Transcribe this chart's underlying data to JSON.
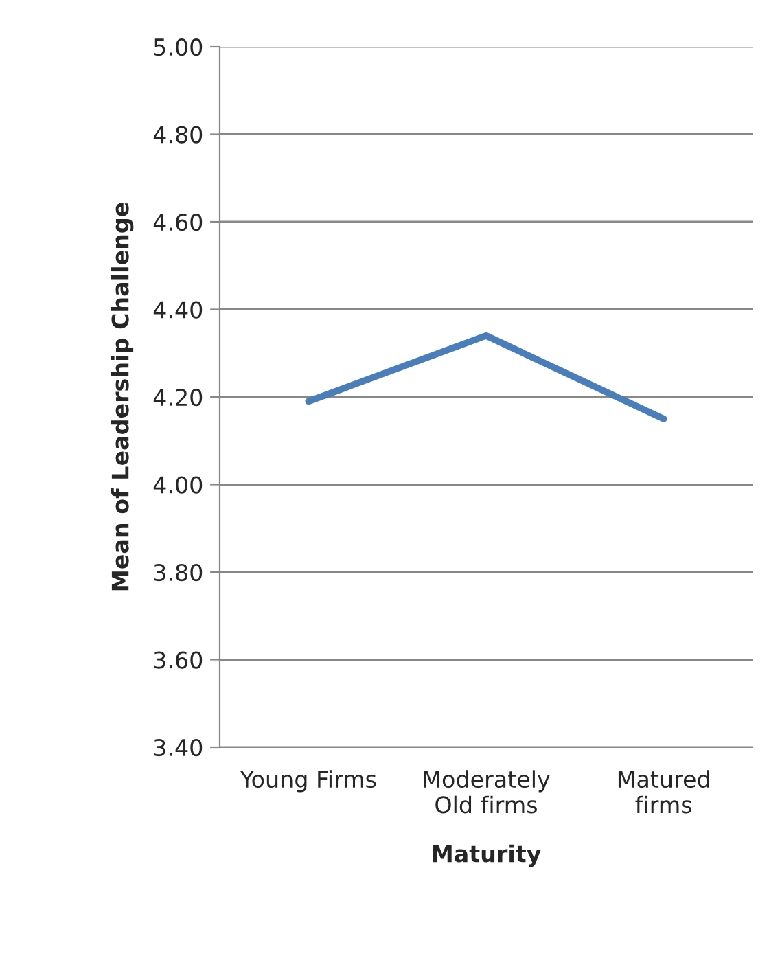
{
  "chart_data": {
    "type": "line",
    "xlabel": "Maturity",
    "ylabel": "Mean of Leadership Challenge",
    "categories": [
      "Young Firms",
      "Moderately\nOld firms",
      "Matured\nfirms"
    ],
    "series": [
      {
        "color": "#4a7ebb",
        "values": [
          4.19,
          4.34,
          4.15
        ]
      }
    ],
    "ylim": [
      3.4,
      5.0
    ],
    "yticks": [
      {
        "value": 3.4,
        "label": "3.40"
      },
      {
        "value": 3.6,
        "label": "3.60"
      },
      {
        "value": 3.8,
        "label": "3.80"
      },
      {
        "value": 4.0,
        "label": "4.00"
      },
      {
        "value": 4.2,
        "label": "4.20"
      },
      {
        "value": 4.4,
        "label": "4.40"
      },
      {
        "value": 4.6,
        "label": "4.60"
      },
      {
        "value": 4.8,
        "label": "4.80"
      },
      {
        "value": 5.0,
        "label": "5.00"
      }
    ],
    "grid": "y",
    "legend": false,
    "marker": "none",
    "line_style": "solid"
  }
}
